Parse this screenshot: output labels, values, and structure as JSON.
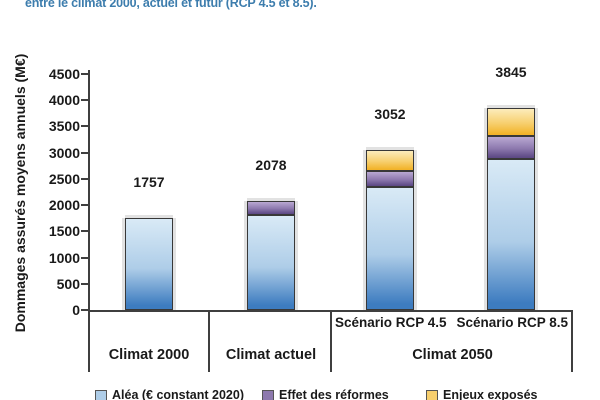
{
  "caption": {
    "text": "entre le climat 2000, actuel et futur (RCP 4.5 et 8.5)."
  },
  "chart_data": {
    "type": "bar",
    "stacked": true,
    "title": "",
    "ylabel": "Dommages assurés moyens annuels (M€)",
    "xlabel": "",
    "ylim": [
      0,
      4500
    ],
    "yticks": [
      0,
      500,
      1000,
      1500,
      2000,
      2500,
      3000,
      3500,
      4000,
      4500
    ],
    "grid": false,
    "legend_position": "bottom",
    "categories": [
      "Climat 2000",
      "Climat actuel",
      "Climat 2050 – Scénario RCP 4.5",
      "Climat 2050 – Scénario RCP 8.5"
    ],
    "totals": [
      1757,
      2078,
      3052,
      3845
    ],
    "series": [
      {
        "name": "Aléa (€ constant 2020)",
        "values": [
          1757,
          1818,
          2343,
          2888
        ],
        "color_top": "#d9eaf6",
        "color_mid": "#aecde8",
        "color_bottom": "#3d7cc0"
      },
      {
        "name": "Effet des réformes",
        "values": [
          0,
          260,
          314,
          435
        ],
        "color_top": "#b9a8d2",
        "color_mid": "#8d79ae",
        "color_bottom": "#5e4a86"
      },
      {
        "name": "Enjeux exposés",
        "values": [
          0,
          0,
          395,
          522
        ],
        "color_top": "#fcecbc",
        "color_mid": "#f7cf6e",
        "color_bottom": "#f2b32a"
      }
    ],
    "x_axis": {
      "group_labels": [
        "Climat 2000",
        "Climat actuel",
        "Climat 2050"
      ],
      "sub_labels": [
        "Scénario RCP 4.5",
        "Scénario RCP 8.5"
      ]
    }
  },
  "colors": {
    "caption": "#3d7dad",
    "axis": "#3f3f3f",
    "text": "#1a1a1a",
    "bar_border": "#383838",
    "bar_halo": "#e2e2e2"
  }
}
